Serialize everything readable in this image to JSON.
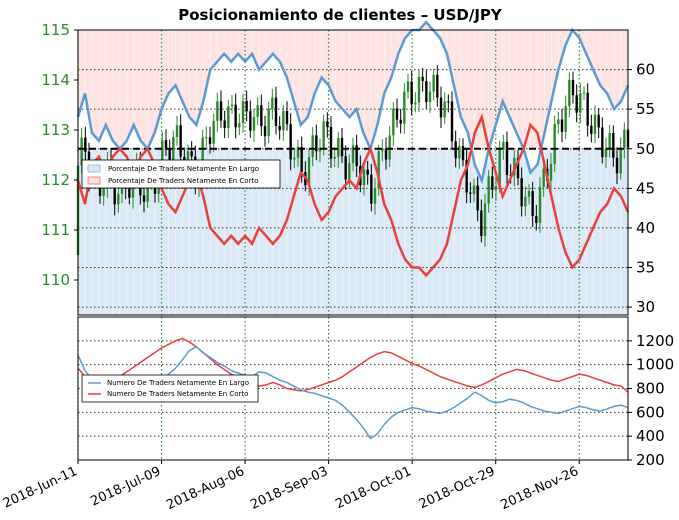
{
  "chart_data": [
    {
      "type": "line",
      "title": "Posicionamiento de clientes – USD/JPY",
      "price_axis": {
        "ylim": [
          109.3,
          115.0
        ],
        "ticks": [
          110,
          111,
          112,
          113,
          114,
          115
        ],
        "color": "#2a8a2a"
      },
      "percent_axis": {
        "ylim": [
          29,
          65
        ],
        "ticks": [
          30,
          35,
          40,
          45,
          50,
          55,
          60
        ]
      },
      "reference_line": 50,
      "legend": {
        "long": "Porcentaje De Traders Netamente En Largo",
        "short": "Porcentaje De Traders Netamente En Corto"
      },
      "colors": {
        "long": "#5b9bd5",
        "short": "#e8403a",
        "long_area": "#dbe9f7",
        "short_area": "#fde3e1",
        "candle_up": "#2a8a2a",
        "candle_down": "#000000"
      },
      "net_long_percent": [
        [
          0,
          54
        ],
        [
          1,
          57
        ],
        [
          2,
          52
        ],
        [
          3,
          51
        ],
        [
          4,
          53
        ],
        [
          5,
          51
        ],
        [
          6,
          50
        ],
        [
          7,
          51
        ],
        [
          8,
          53
        ],
        [
          9,
          51
        ],
        [
          10,
          50
        ],
        [
          11,
          52
        ],
        [
          12,
          55
        ],
        [
          13,
          57
        ],
        [
          14,
          58
        ],
        [
          15,
          56
        ],
        [
          16,
          54
        ],
        [
          17,
          53
        ],
        [
          18,
          56
        ],
        [
          19,
          60
        ],
        [
          20,
          61
        ],
        [
          21,
          62
        ],
        [
          22,
          61
        ],
        [
          23,
          62
        ],
        [
          24,
          61
        ],
        [
          25,
          62
        ],
        [
          26,
          60
        ],
        [
          27,
          61
        ],
        [
          28,
          62
        ],
        [
          29,
          61
        ],
        [
          30,
          59
        ],
        [
          31,
          56
        ],
        [
          32,
          53
        ],
        [
          33,
          54
        ],
        [
          34,
          57
        ],
        [
          35,
          59
        ],
        [
          36,
          58
        ],
        [
          37,
          56
        ],
        [
          38,
          55
        ],
        [
          39,
          54
        ],
        [
          40,
          55
        ],
        [
          41,
          52
        ],
        [
          42,
          50
        ],
        [
          43,
          53
        ],
        [
          44,
          57
        ],
        [
          45,
          59
        ],
        [
          46,
          62
        ],
        [
          47,
          64
        ],
        [
          48,
          65
        ],
        [
          49,
          65
        ],
        [
          50,
          66
        ],
        [
          51,
          65
        ],
        [
          52,
          64
        ],
        [
          53,
          62
        ],
        [
          54,
          58
        ],
        [
          55,
          54
        ],
        [
          56,
          52
        ],
        [
          57,
          48
        ],
        [
          58,
          46
        ],
        [
          59,
          50
        ],
        [
          60,
          53
        ],
        [
          61,
          56
        ],
        [
          62,
          54
        ],
        [
          63,
          52
        ],
        [
          64,
          50
        ],
        [
          65,
          47
        ],
        [
          66,
          48
        ],
        [
          67,
          52
        ],
        [
          68,
          56
        ],
        [
          69,
          60
        ],
        [
          70,
          63
        ],
        [
          71,
          65
        ],
        [
          72,
          64
        ],
        [
          73,
          62
        ],
        [
          74,
          60
        ],
        [
          75,
          58
        ],
        [
          76,
          57
        ],
        [
          77,
          55
        ],
        [
          78,
          56
        ],
        [
          79,
          58
        ]
      ],
      "net_short_percent": [
        [
          0,
          46
        ],
        [
          1,
          43
        ],
        [
          2,
          48
        ],
        [
          3,
          49
        ],
        [
          4,
          47
        ],
        [
          5,
          49
        ],
        [
          6,
          50
        ],
        [
          7,
          49
        ],
        [
          8,
          47
        ],
        [
          9,
          49
        ],
        [
          10,
          50
        ],
        [
          11,
          48
        ],
        [
          12,
          45
        ],
        [
          13,
          43
        ],
        [
          14,
          42
        ],
        [
          15,
          44
        ],
        [
          16,
          46
        ],
        [
          17,
          47
        ],
        [
          18,
          44
        ],
        [
          19,
          40
        ],
        [
          20,
          39
        ],
        [
          21,
          38
        ],
        [
          22,
          39
        ],
        [
          23,
          38
        ],
        [
          24,
          39
        ],
        [
          25,
          38
        ],
        [
          26,
          40
        ],
        [
          27,
          39
        ],
        [
          28,
          38
        ],
        [
          29,
          39
        ],
        [
          30,
          41
        ],
        [
          31,
          44
        ],
        [
          32,
          47
        ],
        [
          33,
          46
        ],
        [
          34,
          43
        ],
        [
          35,
          41
        ],
        [
          36,
          42
        ],
        [
          37,
          44
        ],
        [
          38,
          45
        ],
        [
          39,
          46
        ],
        [
          40,
          45
        ],
        [
          41,
          48
        ],
        [
          42,
          50
        ],
        [
          43,
          47
        ],
        [
          44,
          43
        ],
        [
          45,
          41
        ],
        [
          46,
          38
        ],
        [
          47,
          36
        ],
        [
          48,
          35
        ],
        [
          49,
          35
        ],
        [
          50,
          34
        ],
        [
          51,
          35
        ],
        [
          52,
          36
        ],
        [
          53,
          38
        ],
        [
          54,
          42
        ],
        [
          55,
          46
        ],
        [
          56,
          48
        ],
        [
          57,
          52
        ],
        [
          58,
          54
        ],
        [
          59,
          50
        ],
        [
          60,
          47
        ],
        [
          61,
          44
        ],
        [
          62,
          46
        ],
        [
          63,
          48
        ],
        [
          64,
          50
        ],
        [
          65,
          53
        ],
        [
          66,
          52
        ],
        [
          67,
          48
        ],
        [
          68,
          44
        ],
        [
          69,
          40
        ],
        [
          70,
          37
        ],
        [
          71,
          35
        ],
        [
          72,
          36
        ],
        [
          73,
          38
        ],
        [
          74,
          40
        ],
        [
          75,
          42
        ],
        [
          76,
          43
        ],
        [
          77,
          45
        ],
        [
          78,
          44
        ],
        [
          79,
          42
        ]
      ]
    },
    {
      "type": "line",
      "ylim": [
        200,
        1400
      ],
      "ticks": [
        200,
        400,
        600,
        800,
        1000,
        1200
      ],
      "x_tick_labels": [
        "2018-Jun-11",
        "2018-Jul-09",
        "2018-Aug-06",
        "2018-Sep-03",
        "2018-Oct-01",
        "2018-Oct-29",
        "2018-Nov-26"
      ],
      "legend": {
        "long": "Numero De Traders Netamente En Largo",
        "short": "Numero De Traders Netamente En Corto"
      },
      "colors": {
        "long": "#5b9bd5",
        "short": "#e8403a"
      },
      "net_long_traders": [
        [
          0,
          1080
        ],
        [
          1,
          950
        ],
        [
          2,
          880
        ],
        [
          3,
          900
        ],
        [
          4,
          870
        ],
        [
          5,
          840
        ],
        [
          6,
          810
        ],
        [
          7,
          830
        ],
        [
          8,
          850
        ],
        [
          9,
          820
        ],
        [
          10,
          800
        ],
        [
          11,
          830
        ],
        [
          12,
          880
        ],
        [
          13,
          920
        ],
        [
          14,
          970
        ],
        [
          15,
          1040
        ],
        [
          16,
          1120
        ],
        [
          17,
          1150
        ],
        [
          18,
          1100
        ],
        [
          19,
          1060
        ],
        [
          20,
          1020
        ],
        [
          21,
          990
        ],
        [
          22,
          950
        ],
        [
          23,
          930
        ],
        [
          24,
          910
        ],
        [
          25,
          900
        ],
        [
          26,
          940
        ],
        [
          27,
          930
        ],
        [
          28,
          900
        ],
        [
          29,
          870
        ],
        [
          30,
          850
        ],
        [
          31,
          820
        ],
        [
          32,
          790
        ],
        [
          33,
          770
        ],
        [
          34,
          760
        ],
        [
          35,
          740
        ],
        [
          36,
          720
        ],
        [
          37,
          700
        ],
        [
          38,
          660
        ],
        [
          39,
          600
        ],
        [
          40,
          540
        ],
        [
          41,
          470
        ],
        [
          42,
          380
        ],
        [
          43,
          420
        ],
        [
          44,
          500
        ],
        [
          45,
          560
        ],
        [
          46,
          600
        ],
        [
          47,
          620
        ],
        [
          48,
          640
        ],
        [
          49,
          630
        ],
        [
          50,
          610
        ],
        [
          51,
          600
        ],
        [
          52,
          590
        ],
        [
          53,
          610
        ],
        [
          54,
          640
        ],
        [
          55,
          680
        ],
        [
          56,
          720
        ],
        [
          57,
          770
        ],
        [
          58,
          740
        ],
        [
          59,
          700
        ],
        [
          60,
          680
        ],
        [
          61,
          690
        ],
        [
          62,
          710
        ],
        [
          63,
          700
        ],
        [
          64,
          680
        ],
        [
          65,
          650
        ],
        [
          66,
          630
        ],
        [
          67,
          610
        ],
        [
          68,
          600
        ],
        [
          69,
          590
        ],
        [
          70,
          610
        ],
        [
          71,
          630
        ],
        [
          72,
          650
        ],
        [
          73,
          640
        ],
        [
          74,
          620
        ],
        [
          75,
          610
        ],
        [
          76,
          630
        ],
        [
          77,
          650
        ],
        [
          78,
          660
        ],
        [
          79,
          640
        ]
      ],
      "net_short_traders": [
        [
          0,
          970
        ],
        [
          1,
          900
        ],
        [
          2,
          860
        ],
        [
          3,
          830
        ],
        [
          4,
          820
        ],
        [
          5,
          860
        ],
        [
          6,
          900
        ],
        [
          7,
          940
        ],
        [
          8,
          980
        ],
        [
          9,
          1020
        ],
        [
          10,
          1060
        ],
        [
          11,
          1100
        ],
        [
          12,
          1140
        ],
        [
          13,
          1170
        ],
        [
          14,
          1200
        ],
        [
          15,
          1220
        ],
        [
          16,
          1190
        ],
        [
          17,
          1150
        ],
        [
          18,
          1100
        ],
        [
          19,
          1050
        ],
        [
          20,
          1000
        ],
        [
          21,
          960
        ],
        [
          22,
          920
        ],
        [
          23,
          890
        ],
        [
          24,
          860
        ],
        [
          25,
          840
        ],
        [
          26,
          820
        ],
        [
          27,
          830
        ],
        [
          28,
          850
        ],
        [
          29,
          830
        ],
        [
          30,
          800
        ],
        [
          31,
          790
        ],
        [
          32,
          780
        ],
        [
          33,
          790
        ],
        [
          34,
          810
        ],
        [
          35,
          830
        ],
        [
          36,
          850
        ],
        [
          37,
          870
        ],
        [
          38,
          900
        ],
        [
          39,
          940
        ],
        [
          40,
          980
        ],
        [
          41,
          1020
        ],
        [
          42,
          1060
        ],
        [
          43,
          1090
        ],
        [
          44,
          1110
        ],
        [
          45,
          1100
        ],
        [
          46,
          1070
        ],
        [
          47,
          1040
        ],
        [
          48,
          1010
        ],
        [
          49,
          990
        ],
        [
          50,
          960
        ],
        [
          51,
          930
        ],
        [
          52,
          900
        ],
        [
          53,
          880
        ],
        [
          54,
          860
        ],
        [
          55,
          840
        ],
        [
          56,
          820
        ],
        [
          57,
          810
        ],
        [
          58,
          830
        ],
        [
          59,
          860
        ],
        [
          60,
          890
        ],
        [
          61,
          920
        ],
        [
          62,
          940
        ],
        [
          63,
          960
        ],
        [
          64,
          950
        ],
        [
          65,
          930
        ],
        [
          66,
          910
        ],
        [
          67,
          890
        ],
        [
          68,
          870
        ],
        [
          69,
          860
        ],
        [
          70,
          880
        ],
        [
          71,
          900
        ],
        [
          72,
          920
        ],
        [
          73,
          910
        ],
        [
          74,
          890
        ],
        [
          75,
          870
        ],
        [
          76,
          850
        ],
        [
          77,
          830
        ],
        [
          78,
          820
        ],
        [
          79,
          770
        ]
      ]
    }
  ]
}
